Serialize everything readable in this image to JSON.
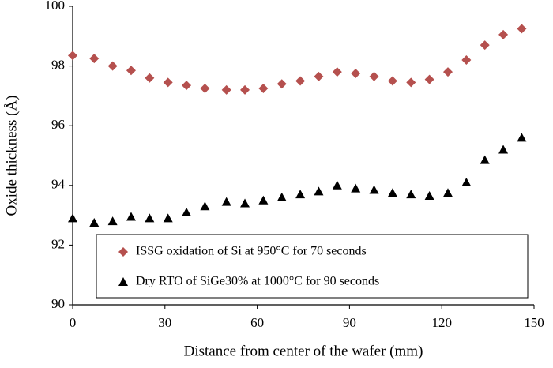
{
  "chart_data": {
    "type": "scatter",
    "x_label": "Distance from center of the wafer (mm)",
    "y_label": "Oxide thickness (Å)",
    "xlim": [
      0,
      150
    ],
    "xticks": [
      0,
      30,
      60,
      90,
      120,
      150
    ],
    "ylim": [
      90,
      100
    ],
    "yticks": [
      90,
      92,
      94,
      96,
      98,
      100
    ],
    "grid": false,
    "legend": "lower center",
    "x": [
      0,
      7,
      13,
      19,
      25,
      31,
      37,
      43,
      50,
      56,
      62,
      68,
      74,
      80,
      86,
      92,
      98,
      104,
      110,
      116,
      122,
      128,
      134,
      140,
      146
    ],
    "series": [
      {
        "name": "ISSG oxidation of Si at 950°C for 70 seconds",
        "color": "#b5504e",
        "marker": "diamond",
        "values": [
          98.35,
          98.25,
          98.0,
          97.85,
          97.6,
          97.45,
          97.35,
          97.25,
          97.2,
          97.2,
          97.25,
          97.4,
          97.5,
          97.65,
          97.8,
          97.75,
          97.65,
          97.5,
          97.45,
          97.55,
          97.8,
          98.2,
          98.7,
          99.05,
          99.25
        ]
      },
      {
        "name": "Dry RTO of SiGe30% at 1000°C for 90 seconds",
        "color": "#000000",
        "marker": "triangle",
        "values": [
          92.9,
          92.75,
          92.8,
          92.95,
          92.9,
          92.9,
          93.1,
          93.3,
          93.45,
          93.4,
          93.5,
          93.6,
          93.7,
          93.8,
          94.0,
          93.9,
          93.85,
          93.75,
          93.7,
          93.65,
          93.75,
          94.1,
          94.85,
          95.2,
          95.6
        ]
      }
    ]
  }
}
